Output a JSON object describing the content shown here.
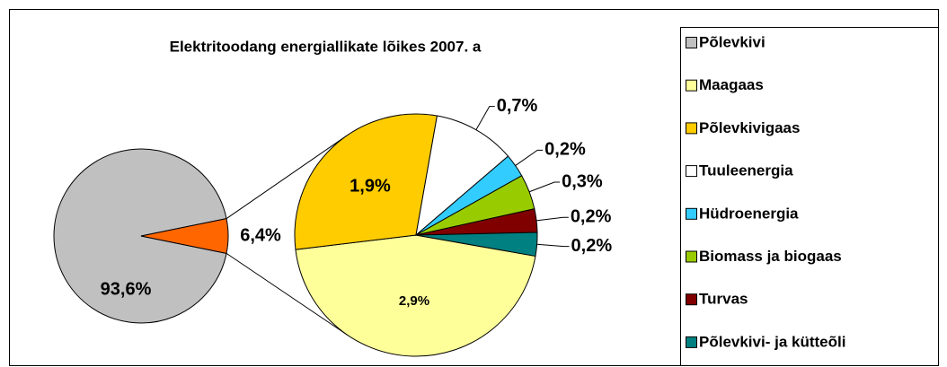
{
  "chart_data": {
    "type": "pie-of-pie",
    "title": "Elektritoodang energiallikate lõikes 2007. a",
    "categories": [
      "Põlevkivi",
      "Maagaas",
      "Põlevkivigaas",
      "Tuuleenergia",
      "Hüdroenergia",
      "Biomass ja biogaas",
      "Turvas",
      "Põlevkivi- ja kütteõli"
    ],
    "values": [
      93.6,
      2.9,
      1.9,
      0.7,
      0.2,
      0.3,
      0.2,
      0.2
    ],
    "value_labels": [
      "93,6%",
      "2,9%",
      "1,9%",
      "0,7%",
      "0,2%",
      "0,3%",
      "0,2%",
      "0,2%"
    ],
    "colors": [
      "#c0c0c0",
      "#ffff99",
      "#ffcc00",
      "#ffffff",
      "#33ccff",
      "#99cc00",
      "#800000",
      "#008080"
    ],
    "other_value": 6.4,
    "other_value_label": "6,4%",
    "other_color": "#ff6600"
  }
}
